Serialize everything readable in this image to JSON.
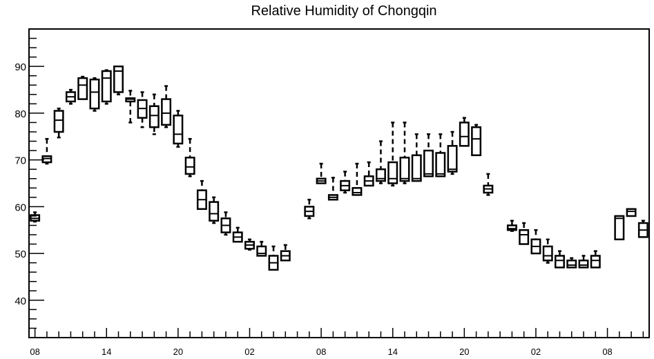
{
  "chart_data": {
    "type": "box",
    "title": "Relative Humidity of Chongqin",
    "xlabel": "",
    "ylabel": "",
    "ylim": [
      32,
      98
    ],
    "yticks": [
      40,
      50,
      60,
      70,
      80,
      90
    ],
    "xtick_labels": [
      "08",
      "14",
      "20",
      "02",
      "08",
      "14",
      "20",
      "02",
      "08"
    ],
    "hours_per_box": 1,
    "boxes": [
      {
        "q1": 57.0,
        "median": 57.5,
        "q3": 58.2,
        "whisker_low": 56.8,
        "whisker_high": 58.8
      },
      {
        "q1": 69.5,
        "median": 70.3,
        "q3": 70.8,
        "whisker_low": 69.2,
        "whisker_high": 74.5
      },
      {
        "q1": 76.0,
        "median": 78.5,
        "q3": 80.5,
        "whisker_low": 74.8,
        "whisker_high": 81.0
      },
      {
        "q1": 82.5,
        "median": 83.5,
        "q3": 84.5,
        "whisker_low": 82.0,
        "whisker_high": 85.0
      },
      {
        "q1": 83.0,
        "median": 86.0,
        "q3": 87.5,
        "whisker_low": 83.0,
        "whisker_high": 87.8
      },
      {
        "q1": 81.0,
        "median": 84.5,
        "q3": 87.2,
        "whisker_low": 80.5,
        "whisker_high": 87.5
      },
      {
        "q1": 82.5,
        "median": 87.5,
        "q3": 89.0,
        "whisker_low": 82.0,
        "whisker_high": 89.2
      },
      {
        "q1": 84.5,
        "median": 89.0,
        "q3": 90.0,
        "whisker_low": 84.0,
        "whisker_high": 90.0
      },
      {
        "q1": 82.5,
        "median": 83.0,
        "q3": 83.2,
        "whisker_low": 78.0,
        "whisker_high": 84.8
      },
      {
        "q1": 79.0,
        "median": 81.0,
        "q3": 82.8,
        "whisker_low": 77.0,
        "whisker_high": 84.5
      },
      {
        "q1": 77.0,
        "median": 79.5,
        "q3": 81.5,
        "whisker_low": 75.5,
        "whisker_high": 84.0
      },
      {
        "q1": 77.5,
        "median": 80.0,
        "q3": 83.0,
        "whisker_low": 77.0,
        "whisker_high": 85.8
      },
      {
        "q1": 73.5,
        "median": 75.5,
        "q3": 79.5,
        "whisker_low": 72.8,
        "whisker_high": 80.5
      },
      {
        "q1": 67.0,
        "median": 68.5,
        "q3": 70.5,
        "whisker_low": 66.5,
        "whisker_high": 74.5
      },
      {
        "q1": 59.5,
        "median": 61.5,
        "q3": 63.5,
        "whisker_low": 59.5,
        "whisker_high": 65.5
      },
      {
        "q1": 57.0,
        "median": 58.5,
        "q3": 61.0,
        "whisker_low": 56.5,
        "whisker_high": 62.0
      },
      {
        "q1": 54.5,
        "median": 56.0,
        "q3": 57.5,
        "whisker_low": 54.0,
        "whisker_high": 58.8
      },
      {
        "q1": 52.5,
        "median": 53.5,
        "q3": 54.5,
        "whisker_low": 52.5,
        "whisker_high": 55.5
      },
      {
        "q1": 51.0,
        "median": 51.8,
        "q3": 52.5,
        "whisker_low": 50.8,
        "whisker_high": 53.0
      },
      {
        "q1": 49.5,
        "median": 50.0,
        "q3": 51.5,
        "whisker_low": 49.5,
        "whisker_high": 52.5
      },
      {
        "q1": 46.5,
        "median": 48.0,
        "q3": 49.5,
        "whisker_low": 46.5,
        "whisker_high": 51.5
      },
      {
        "q1": 48.5,
        "median": 49.5,
        "q3": 50.5,
        "whisker_low": 48.5,
        "whisker_high": 51.8
      },
      null,
      {
        "q1": 58.0,
        "median": 59.0,
        "q3": 60.0,
        "whisker_low": 57.5,
        "whisker_high": 61.5
      },
      {
        "q1": 65.0,
        "median": 65.5,
        "q3": 66.0,
        "whisker_low": 65.0,
        "whisker_high": 69.2
      },
      {
        "q1": 61.5,
        "median": 62.0,
        "q3": 62.5,
        "whisker_low": 61.5,
        "whisker_high": 66.2
      },
      {
        "q1": 63.5,
        "median": 64.5,
        "q3": 65.5,
        "whisker_low": 63.0,
        "whisker_high": 67.5
      },
      {
        "q1": 62.5,
        "median": 63.0,
        "q3": 64.0,
        "whisker_low": 62.5,
        "whisker_high": 69.2
      },
      {
        "q1": 64.5,
        "median": 65.5,
        "q3": 66.5,
        "whisker_low": 64.5,
        "whisker_high": 69.5
      },
      {
        "q1": 65.5,
        "median": 66.0,
        "q3": 68.0,
        "whisker_low": 65.0,
        "whisker_high": 74.0
      },
      {
        "q1": 65.0,
        "median": 66.0,
        "q3": 69.5,
        "whisker_low": 64.5,
        "whisker_high": 78.0
      },
      {
        "q1": 65.5,
        "median": 66.0,
        "q3": 70.5,
        "whisker_low": 65.0,
        "whisker_high": 78.0
      },
      {
        "q1": 65.5,
        "median": 66.0,
        "q3": 71.0,
        "whisker_low": 65.5,
        "whisker_high": 75.5
      },
      {
        "q1": 66.5,
        "median": 67.0,
        "q3": 72.0,
        "whisker_low": 66.5,
        "whisker_high": 75.5
      },
      {
        "q1": 66.5,
        "median": 67.0,
        "q3": 71.5,
        "whisker_low": 66.5,
        "whisker_high": 75.5
      },
      {
        "q1": 67.5,
        "median": 68.0,
        "q3": 73.0,
        "whisker_low": 67.0,
        "whisker_high": 76.0
      },
      {
        "q1": 73.0,
        "median": 75.0,
        "q3": 78.0,
        "whisker_low": 73.0,
        "whisker_high": 79.0
      },
      {
        "q1": 71.0,
        "median": 74.5,
        "q3": 77.0,
        "whisker_low": 71.0,
        "whisker_high": 77.5
      },
      {
        "q1": 63.0,
        "median": 63.8,
        "q3": 64.5,
        "whisker_low": 62.5,
        "whisker_high": 67.0
      },
      null,
      {
        "q1": 55.0,
        "median": 55.3,
        "q3": 56.0,
        "whisker_low": 54.8,
        "whisker_high": 57.0
      },
      {
        "q1": 52.0,
        "median": 54.0,
        "q3": 55.0,
        "whisker_low": 52.0,
        "whisker_high": 56.5
      },
      {
        "q1": 50.0,
        "median": 51.5,
        "q3": 53.0,
        "whisker_low": 50.0,
        "whisker_high": 55.0
      },
      {
        "q1": 48.5,
        "median": 49.5,
        "q3": 51.5,
        "whisker_low": 48.0,
        "whisker_high": 53.0
      },
      {
        "q1": 47.0,
        "median": 48.5,
        "q3": 49.5,
        "whisker_low": 47.0,
        "whisker_high": 50.5
      },
      {
        "q1": 47.0,
        "median": 47.5,
        "q3": 48.5,
        "whisker_low": 47.0,
        "whisker_high": 49.0
      },
      {
        "q1": 47.0,
        "median": 47.5,
        "q3": 48.5,
        "whisker_low": 47.0,
        "whisker_high": 49.5
      },
      {
        "q1": 47.0,
        "median": 48.5,
        "q3": 49.5,
        "whisker_low": 47.0,
        "whisker_high": 50.5
      },
      null,
      {
        "q1": 53.0,
        "median": 57.5,
        "q3": 58.0,
        "whisker_low": 53.0,
        "whisker_high": 58.0
      },
      {
        "q1": 58.0,
        "median": 59.0,
        "q3": 59.5,
        "whisker_low": 58.0,
        "whisker_high": 59.5
      },
      {
        "q1": 53.5,
        "median": 55.0,
        "q3": 56.5,
        "whisker_low": 53.5,
        "whisker_high": 57.0
      }
    ]
  }
}
